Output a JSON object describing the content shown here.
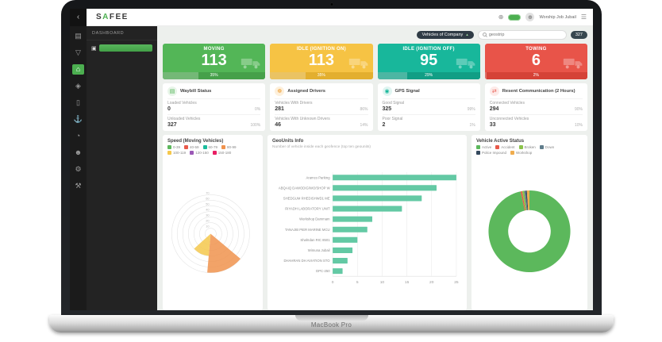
{
  "device": {
    "label": "MacBook Pro"
  },
  "brand": {
    "part1": "S",
    "part2": "A",
    "part3": "FEE"
  },
  "topbar": {
    "user": "Worship Job Jubail",
    "back_glyph": "‹",
    "locate_glyph": "⊕",
    "menu_glyph": "☰",
    "avatar_glyph": "☻"
  },
  "toolbar": {
    "company": "Vehicles of Company",
    "caret_glyph": "▴",
    "search_placeholder": "geostrip",
    "count": "327"
  },
  "panel": {
    "title": "DASHBOARD"
  },
  "sidebar": {
    "icons": [
      {
        "name": "monitor-icon",
        "glyph": "▤",
        "active": false
      },
      {
        "name": "filter-icon",
        "glyph": "▽",
        "active": false
      },
      {
        "name": "home-icon",
        "glyph": "⌂",
        "active": true
      },
      {
        "name": "layers-icon",
        "glyph": "◈",
        "active": false
      },
      {
        "name": "battery-icon",
        "glyph": "▯",
        "active": false
      },
      {
        "name": "anchor-icon",
        "glyph": "⚓",
        "active": false
      },
      {
        "name": "gauge-icon",
        "glyph": "◔",
        "active": false
      },
      {
        "name": "user-icon",
        "glyph": "☻",
        "active": false
      },
      {
        "name": "settings-icon",
        "glyph": "⚙",
        "active": false
      },
      {
        "name": "tools-icon",
        "glyph": "⚒",
        "active": false
      }
    ]
  },
  "status_cards": [
    {
      "label": "MOVING",
      "value": "113",
      "percent": "35%",
      "color": "#53b657",
      "color_dark": "#46a04a"
    },
    {
      "label": "IDLE (IGNITION ON)",
      "value": "113",
      "percent": "35%",
      "color": "#f6c344",
      "color_dark": "#e3af2f"
    },
    {
      "label": "IDLE (IGNITION OFF)",
      "value": "95",
      "percent": "29%",
      "color": "#18b79b",
      "color_dark": "#119e85"
    },
    {
      "label": "TOWING",
      "value": "6",
      "percent": "2%",
      "color": "#e85449",
      "color_dark": "#d54237"
    }
  ],
  "stat_cards": [
    {
      "title": "Waybill Status",
      "icon_glyph": "▤",
      "color": "#53b657",
      "tint": "#e8f5e9",
      "rows": [
        {
          "label": "Loaded Vehicles",
          "value": "0",
          "percent": "0%"
        },
        {
          "label": "Unloaded Vehicles",
          "value": "327",
          "percent": "100%"
        }
      ]
    },
    {
      "title": "Assigned Drivers",
      "icon_glyph": "☸",
      "color": "#f0a23c",
      "tint": "#fdf0dc",
      "rows": [
        {
          "label": "Vehicles With Drivers",
          "value": "281",
          "percent": "86%"
        },
        {
          "label": "Vehicles With Unknown Drivers",
          "value": "46",
          "percent": "14%"
        }
      ]
    },
    {
      "title": "GPS Signal",
      "icon_glyph": "◉",
      "color": "#18b79b",
      "tint": "#e0f5f1",
      "rows": [
        {
          "label": "Good Signal",
          "value": "325",
          "percent": "99%"
        },
        {
          "label": "Poor Signal",
          "value": "2",
          "percent": "1%"
        }
      ]
    },
    {
      "title": "Resent Communication (2 Hours)",
      "icon_glyph": "⇄",
      "color": "#e85449",
      "tint": "#fdeae8",
      "rows": [
        {
          "label": "Connected Vehicles",
          "value": "294",
          "percent": "90%"
        },
        {
          "label": "Unconnected Vehicles",
          "value": "33",
          "percent": "10%"
        }
      ]
    }
  ],
  "chart_data": [
    {
      "type": "polar",
      "title": "Speed (Moving Vehicles)",
      "rlim": [
        0,
        70
      ],
      "rticks": [
        10,
        20,
        30,
        40,
        50,
        60,
        70
      ],
      "legend": [
        {
          "label": "0-39",
          "color": "#5cb85c"
        },
        {
          "label": "40-59",
          "color": "#e8594a"
        },
        {
          "label": "60-79",
          "color": "#1abc9c"
        },
        {
          "label": "80-99",
          "color": "#f0934e"
        },
        {
          "label": "100-119",
          "color": "#f5c84c"
        },
        {
          "label": "120-150",
          "color": "#9b59b6"
        },
        {
          "label": "150-180",
          "color": "#e91e63"
        }
      ],
      "segments": [
        {
          "label": "80-99",
          "start": 130,
          "end": 185,
          "value": 70,
          "color": "#f0934e"
        },
        {
          "label": "100-119",
          "start": 185,
          "end": 228,
          "value": 40,
          "color": "#f5c84c"
        }
      ]
    },
    {
      "type": "bar",
      "title": "GeoUnits Info",
      "subtitle": "Number of vehicle inside each geofence (top ten geounits)",
      "categories": [
        "Aramco Parking",
        "ABQAIQ DAWODIG/WO/SHOP W",
        "SHEDGUM RHEDISHWD1 ME",
        "RIYADH LABORATORY UNIT",
        "Workshop Dammam",
        "TANAJIB PIER MARINE MCU",
        "ShahIdan RIC 8501",
        "Wimuna Jubail",
        "DHAHRAN DH AVIATION STO",
        "DPC-250"
      ],
      "values": [
        25,
        21,
        18,
        14,
        8,
        7,
        5,
        4,
        3,
        2
      ],
      "xlim": [
        0,
        25
      ],
      "xticks": [
        0,
        5,
        10,
        15,
        20,
        25
      ],
      "bar_color": "#63c9a4"
    },
    {
      "type": "donut",
      "title": "Vehicle Active Status",
      "slices": [
        {
          "label": "Active",
          "value": 96.5,
          "color": "#5cb85c"
        },
        {
          "label": "Accident",
          "value": 0.6,
          "color": "#e8594a"
        },
        {
          "label": "Broken",
          "value": 0.8,
          "color": "#8bc34a"
        },
        {
          "label": "Down",
          "value": 0.6,
          "color": "#607d8b"
        },
        {
          "label": "Police Impound",
          "value": 0.5,
          "color": "#34495e"
        },
        {
          "label": "Workshop",
          "value": 1.0,
          "color": "#f0ad4e"
        }
      ]
    }
  ]
}
